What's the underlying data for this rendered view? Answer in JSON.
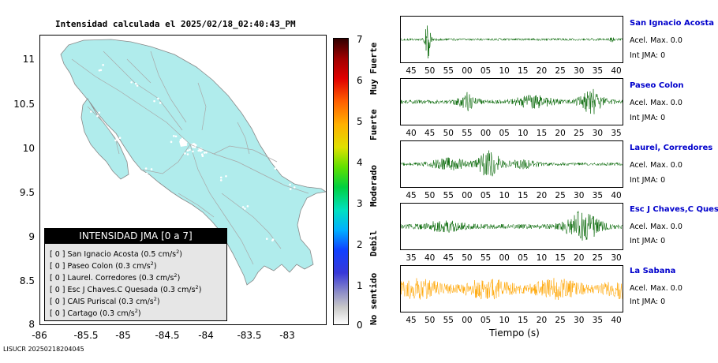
{
  "map": {
    "title": "Intensidad calculada el 2025/02/18_02:40:43_PM",
    "lat_ticks": [
      "11",
      "10.5",
      "10",
      "9.5",
      "9",
      "8.5",
      "8"
    ],
    "lon_ticks": [
      "-86",
      "-85.5",
      "-85",
      "-84.5",
      "-84",
      "-83.5",
      "-83"
    ],
    "land_color": "#b0ecec",
    "legend": {
      "header": "INTENSIDAD JMA [0 a 7]",
      "items": [
        {
          "text": "[ 0 ] San Ignacio Acosta (0.5 cm/s",
          "sup": "2",
          "end": ")"
        },
        {
          "text": "[ 0 ] Paseo Colon (0.3 cm/s",
          "sup": "2",
          "end": ")"
        },
        {
          "text": "[ 0 ] Laurel. Corredores (0.3 cm/s",
          "sup": "2",
          "end": ")"
        },
        {
          "text": "[ 0 ] Esc J Chaves.C Quesada (0.3 cm/s",
          "sup": "2",
          "end": ")"
        },
        {
          "text": "[ 0 ] CAIS Puriscal (0.3 cm/s",
          "sup": "2",
          "end": ")"
        },
        {
          "text": "[ 0 ] Cartago (0.3 cm/s",
          "sup": "2",
          "end": ")"
        }
      ]
    }
  },
  "colorbar": {
    "numbers": [
      "7",
      "6",
      "5",
      "4",
      "3",
      "2",
      "1",
      "0"
    ],
    "categories": [
      "Muy Fuerte",
      "Fuerte",
      "Moderado",
      "Debil",
      "No sentido"
    ]
  },
  "traces": [
    {
      "name": "San Ignacio Acosta",
      "accel": "Acel. Max. 0.0",
      "jma": "Int JMA: 0",
      "color": "#006400",
      "ticks": [
        "45",
        "50",
        "55",
        "00",
        "05",
        "10",
        "15",
        "20",
        "25",
        "30",
        "35",
        "40"
      ],
      "pattern": "spike"
    },
    {
      "name": "Paseo Colon",
      "accel": "Acel. Max. 0.0",
      "jma": "Int JMA: 0",
      "color": "#006400",
      "ticks": [
        "40",
        "45",
        "50",
        "55",
        "00",
        "05",
        "10",
        "15",
        "20",
        "25",
        "30",
        "35"
      ],
      "pattern": "double"
    },
    {
      "name": "Laurel, Corredores",
      "accel": "Acel. Max. 0.0",
      "jma": "Int JMA: 0",
      "color": "#006400",
      "ticks": [
        "45",
        "50",
        "55",
        "00",
        "05",
        "10",
        "15",
        "20",
        "25",
        "30",
        "35",
        "40"
      ],
      "pattern": "center"
    },
    {
      "name": "Esc J Chaves,C Quesada",
      "accel": "Acel. Max. 0.0",
      "jma": "Int JMA: 0",
      "color": "#006400",
      "ticks": [
        "35",
        "40",
        "45",
        "50",
        "55",
        "00",
        "05",
        "10",
        "15",
        "20",
        "25",
        "30"
      ],
      "pattern": "late"
    },
    {
      "name": "La Sabana",
      "accel": "Acel. Max. 0.0",
      "jma": "Int JMA: 0",
      "color": "#ffa500",
      "ticks": [
        "45",
        "50",
        "55",
        "00",
        "05",
        "10",
        "15",
        "20",
        "25",
        "30",
        "35",
        "40"
      ],
      "pattern": "noise"
    }
  ],
  "xaxis_label": "Tiempo (s)",
  "footer_id": "LISUCR 20250218204045"
}
